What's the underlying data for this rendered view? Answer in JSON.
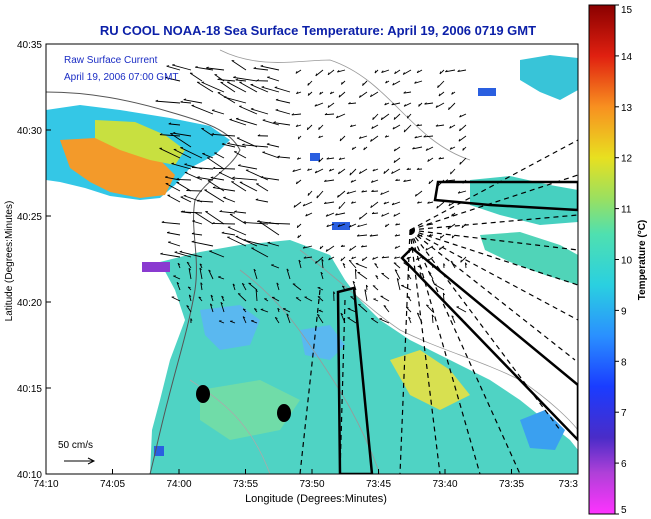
{
  "title": "RU COOL  NOAA-18  Sea Surface Temperature:  April 19, 2006 0719 GMT",
  "current_label": {
    "line1": "Raw Surface Current",
    "line2": "April 19, 2006 07:00 GMT"
  },
  "scale_label": "50 cm/s",
  "axes": {
    "xlabel": "Longitude (Degrees:Minutes)",
    "ylabel": "Latitude (Degrees:Minutes)",
    "xticks": [
      "74:10",
      "74:05",
      "74:00",
      "73:55",
      "73:50",
      "73:45",
      "73:40",
      "73:35",
      "73:3"
    ],
    "yticks": [
      "40:35",
      "40:30",
      "40:25",
      "40:20",
      "40:15",
      "40:10"
    ]
  },
  "colorbar": {
    "label": "Temperature (°C)",
    "ticks": [
      "15",
      "14",
      "13",
      "12",
      "11",
      "10",
      "9",
      "8",
      "7",
      "6",
      "5"
    ],
    "range": [
      5,
      15
    ]
  },
  "colors": {
    "title": "#0b1fa8",
    "annotation": "#1a2cc4",
    "land": "#ffffff",
    "warm": "#f39a2a",
    "mid": "#4fd0c7",
    "cool": "#2a5fe0"
  }
}
